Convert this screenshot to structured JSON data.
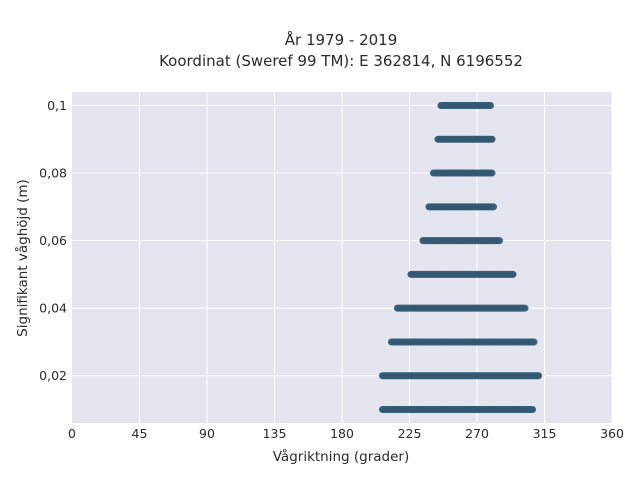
{
  "chart_data": {
    "type": "scatter",
    "title": "År 1979 - 2019",
    "subtitle": "Koordinat (Sweref 99 TM): E 362814, N 6196552",
    "xlabel": "Vågriktning (grader)",
    "ylabel": "Signifikant våghöjd (m)",
    "xlim": [
      0,
      360
    ],
    "ylim": [
      0.006,
      0.104
    ],
    "xticks": [
      0,
      45,
      90,
      135,
      180,
      225,
      270,
      315,
      360
    ],
    "xtick_labels": [
      "0",
      "45",
      "90",
      "135",
      "180",
      "225",
      "270",
      "315",
      "360"
    ],
    "yticks": [
      0.02,
      0.04,
      0.06,
      0.08,
      0.1
    ],
    "ytick_labels": [
      "0,02",
      "0,04",
      "0,06",
      "0,08",
      "0,1"
    ],
    "grid": true,
    "marker_color": "#2f5570",
    "plot_background": "#e5e5ef",
    "grid_color": "#ffffff",
    "bands": [
      {
        "y": 0.01,
        "x_min": 207,
        "x_max": 307
      },
      {
        "y": 0.02,
        "x_min": 207,
        "x_max": 311
      },
      {
        "y": 0.03,
        "x_min": 213,
        "x_max": 308
      },
      {
        "y": 0.04,
        "x_min": 217,
        "x_max": 302
      },
      {
        "y": 0.05,
        "x_min": 226,
        "x_max": 294
      },
      {
        "y": 0.06,
        "x_min": 234,
        "x_max": 285
      },
      {
        "y": 0.07,
        "x_min": 238,
        "x_max": 281
      },
      {
        "y": 0.08,
        "x_min": 241,
        "x_max": 280
      },
      {
        "y": 0.09,
        "x_min": 244,
        "x_max": 280
      },
      {
        "y": 0.1,
        "x_min": 246,
        "x_max": 279
      }
    ]
  }
}
